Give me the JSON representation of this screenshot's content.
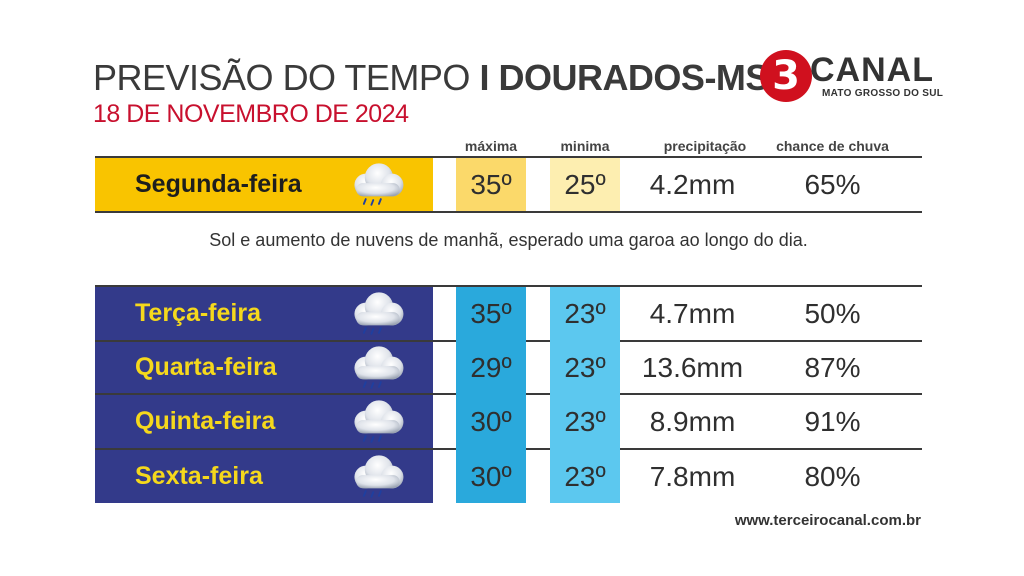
{
  "header": {
    "title_prefix": "PREVISÃO DO TEMPO",
    "title_city": "I DOURADOS-MS",
    "date": "18 DE NOVEMBRO DE 2024"
  },
  "logo": {
    "mark": "3",
    "name": "CANAL",
    "region": "MATO GROSSO DO SUL"
  },
  "columns": {
    "max": "máxima",
    "min": "minima",
    "precip": "precipitação",
    "chance": "chance de chuva"
  },
  "today": {
    "day": "Segunda-feira",
    "icon": "rain-cloud-icon",
    "max": "35º",
    "min": "25º",
    "precip": "4.2mm",
    "chance": "65%",
    "description": "Sol e aumento de nuvens de manhã, esperado uma garoa ao longo do dia."
  },
  "week": [
    {
      "day": "Terça-feira",
      "icon": "rain-cloud-icon",
      "max": "35º",
      "min": "23º",
      "precip": "4.7mm",
      "chance": "50%"
    },
    {
      "day": "Quarta-feira",
      "icon": "rain-cloud-icon",
      "max": "29º",
      "min": "23º",
      "precip": "13.6mm",
      "chance": "87%"
    },
    {
      "day": "Quinta-feira",
      "icon": "rain-cloud-icon",
      "max": "30º",
      "min": "23º",
      "precip": "8.9mm",
      "chance": "91%"
    },
    {
      "day": "Sexta-feira",
      "icon": "rain-cloud-icon",
      "max": "30º",
      "min": "23º",
      "precip": "7.8mm",
      "chance": "80%"
    }
  ],
  "footer": {
    "website": "www.terceirocanal.com.br"
  },
  "colors": {
    "today_band": "#f9c400",
    "week_band": "#333a8a",
    "week_day_text": "#f5d81c",
    "accent_red": "#c8102e",
    "max_week": "#2aa9dc",
    "min_week": "#5cc8ef"
  }
}
